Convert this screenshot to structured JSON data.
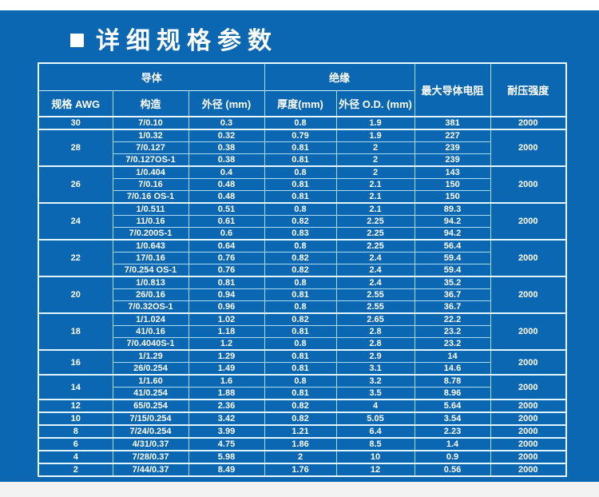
{
  "title": {
    "bullet_icon": "square-bullet",
    "text": "详细规格参数"
  },
  "colors": {
    "background_blue": "#0B67B2",
    "top_bar": "#FFFFFF",
    "bottom_bar": "#F2F2F2",
    "table_border_light": "#A8DCF0",
    "table_border_bright": "#EAF7FE",
    "text": "#FFFFFF"
  },
  "table": {
    "group_headers": [
      {
        "label": "导体",
        "colspan": 3
      },
      {
        "label": "绝缘",
        "colspan": 2
      },
      {
        "label": "最大导体电阻",
        "rowspan": 2
      },
      {
        "label": "耐压强度",
        "rowspan": 2
      }
    ],
    "sub_headers": [
      "规格 AWG",
      "构造",
      "外径 (mm)",
      "厚度(mm)",
      "外径 O.D. (mm)"
    ],
    "groups": [
      {
        "awg": "30",
        "voltage": "2000",
        "rows": [
          [
            "7/0.10",
            "0.3",
            "0.8",
            "1.9",
            "381"
          ]
        ]
      },
      {
        "awg": "28",
        "voltage": "2000",
        "rows": [
          [
            "1/0.32",
            "0.32",
            "0.79",
            "1.9",
            "227"
          ],
          [
            "7/0.127",
            "0.38",
            "0.81",
            "2",
            "239"
          ],
          [
            "7/0.127OS-1",
            "0.38",
            "0.81",
            "2",
            "239"
          ]
        ]
      },
      {
        "awg": "26",
        "voltage": "2000",
        "rows": [
          [
            "1/0.404",
            "0.4",
            "0.8",
            "2",
            "143"
          ],
          [
            "7/0.16",
            "0.48",
            "0.81",
            "2.1",
            "150"
          ],
          [
            "7/0.16 OS-1",
            "0.48",
            "0.81",
            "2.1",
            "150"
          ]
        ]
      },
      {
        "awg": "24",
        "voltage": "2000",
        "rows": [
          [
            "1/0.511",
            "0.51",
            "0.8",
            "2.1",
            "89.3"
          ],
          [
            "11/0.16",
            "0.61",
            "0.82",
            "2.25",
            "94.2"
          ],
          [
            "7/0.200S-1",
            "0.6",
            "0.83",
            "2.25",
            "94.2"
          ]
        ]
      },
      {
        "awg": "22",
        "voltage": "2000",
        "rows": [
          [
            "1/0.643",
            "0.64",
            "0.8",
            "2.25",
            "56.4"
          ],
          [
            "17/0.16",
            "0.76",
            "0.82",
            "2.4",
            "59.4"
          ],
          [
            "7/0.254 OS-1",
            "0.76",
            "0.82",
            "2.4",
            "59.4"
          ]
        ]
      },
      {
        "awg": "20",
        "voltage": "2000",
        "rows": [
          [
            "1/0.813",
            "0.81",
            "0.8",
            "2.4",
            "35.2"
          ],
          [
            "26/0.16",
            "0.94",
            "0.81",
            "2.55",
            "36.7"
          ],
          [
            "7/0.32OS-1",
            "0.96",
            "0.8",
            "2.55",
            "36.7"
          ]
        ]
      },
      {
        "awg": "18",
        "voltage": "2000",
        "rows": [
          [
            "1/1.024",
            "1.02",
            "0.82",
            "2.65",
            "22.2"
          ],
          [
            "41/0.16",
            "1.18",
            "0.81",
            "2.8",
            "23.2"
          ],
          [
            "7/0.4040S-1",
            "1.2",
            "0.8",
            "2.8",
            "23.2"
          ]
        ]
      },
      {
        "awg": "16",
        "voltage": "2000",
        "rows": [
          [
            "1/1.29",
            "1.29",
            "0.81",
            "2.9",
            "14"
          ],
          [
            "26/0.254",
            "1.49",
            "0.81",
            "3.1",
            "14.6"
          ]
        ]
      },
      {
        "awg": "14",
        "voltage": "2000",
        "rows": [
          [
            "1/1.60",
            "1.6",
            "0.8",
            "3.2",
            "8.78"
          ],
          [
            "41/0.254",
            "1.88",
            "0.81",
            "3.5",
            "8.96"
          ]
        ]
      },
      {
        "awg": "12",
        "voltage": "2000",
        "rows": [
          [
            "65/0.254",
            "2.36",
            "0.82",
            "4",
            "5.64"
          ]
        ]
      },
      {
        "awg": "10",
        "voltage": "2000",
        "rows": [
          [
            "7/15/0.254",
            "3.42",
            "0.82",
            "5.05",
            "3.54"
          ]
        ]
      },
      {
        "awg": "8",
        "voltage": "2000",
        "rows": [
          [
            "7/24/0.254",
            "3.99",
            "1.21",
            "6.4",
            "2.23"
          ]
        ]
      },
      {
        "awg": "6",
        "voltage": "2000",
        "rows": [
          [
            "4/31/0.37",
            "4.75",
            "1.86",
            "8.5",
            "1.4"
          ]
        ]
      },
      {
        "awg": "4",
        "voltage": "2000",
        "rows": [
          [
            "7/28/0.37",
            "5.98",
            "2",
            "10",
            "0.9"
          ]
        ]
      },
      {
        "awg": "2",
        "voltage": "2000",
        "rows": [
          [
            "7/44/0.37",
            "8.49",
            "1.76",
            "12",
            "0.56"
          ]
        ]
      }
    ]
  }
}
